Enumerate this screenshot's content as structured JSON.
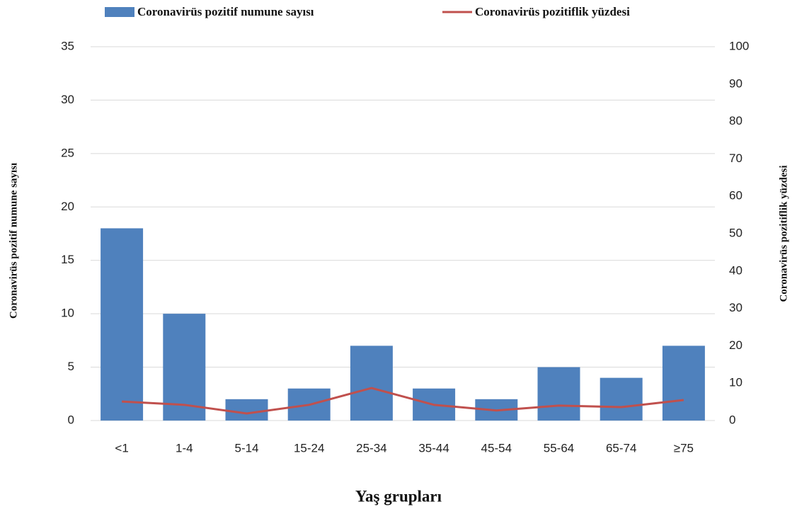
{
  "chart_data": {
    "type": "bar",
    "x_label": "Yaş grupları",
    "y_label": "Coronavirüs pozitif numune sayısı",
    "y2_label": "Coronavirüs pozitiflik yüzdesi",
    "categories": [
      "<1",
      "1-4",
      "5-14",
      "15-24",
      "25-34",
      "35-44",
      "45-54",
      "55-64",
      "65-74",
      "≥75"
    ],
    "series": [
      {
        "name": "Coronavirüs pozitif numune sayısı",
        "type": "bar",
        "color": "#4f81bd",
        "values": [
          18,
          10,
          2,
          3,
          7,
          3,
          2,
          5,
          4,
          7
        ]
      },
      {
        "name": "Coronavirüs pozitiflik yüzdesi",
        "type": "line",
        "axis": "y2",
        "color": "#c0504d",
        "values": [
          5.1,
          4.2,
          1.9,
          4.2,
          8.7,
          4.2,
          2.7,
          4.0,
          3.6,
          5.5
        ]
      }
    ],
    "ylim": [
      0,
      35
    ],
    "yticks": [
      0,
      5,
      10,
      15,
      20,
      25,
      30,
      35
    ],
    "y2lim": [
      0,
      100
    ],
    "y2ticks": [
      0,
      10,
      20,
      30,
      40,
      50,
      60,
      70,
      80,
      90,
      100
    ],
    "grid": true,
    "legend": "top"
  }
}
